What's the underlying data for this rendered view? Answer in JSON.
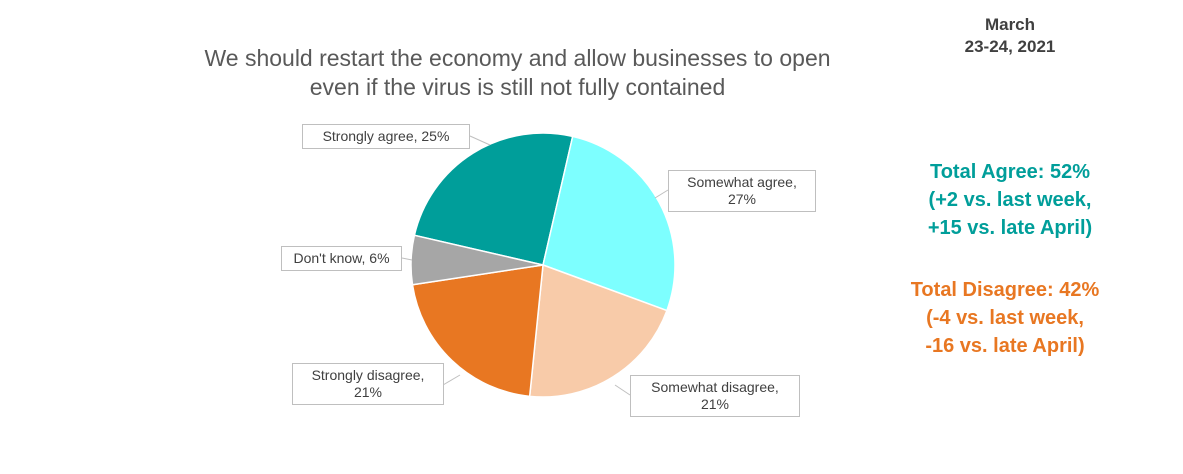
{
  "chart_data": {
    "type": "pie",
    "title": "We should restart the economy and allow businesses to open even if the virus is still not fully contained",
    "categories": [
      "Strongly agree",
      "Somewhat agree",
      "Somewhat disagree",
      "Strongly disagree",
      "Don't know"
    ],
    "values": [
      25,
      27,
      21,
      21,
      6
    ],
    "value_labels": [
      "Strongly agree, 25%",
      "Somewhat agree, 27%",
      "Somewhat disagree, 21%",
      "Strongly disagree, 21%",
      "Don't know, 6%"
    ],
    "colors": [
      "#009e9a",
      "#7dffff",
      "#f8cba9",
      "#e87722",
      "#a6a6a6"
    ],
    "annotations": {
      "date": [
        "March",
        "23-24, 2021"
      ],
      "agree": [
        "Total Agree: 52%",
        "(+2 vs. last week,",
        "+15 vs. late April)"
      ],
      "disagree": [
        "Total Disagree: 42%",
        "(-4 vs. last week,",
        "-16 vs. late April)"
      ]
    }
  }
}
